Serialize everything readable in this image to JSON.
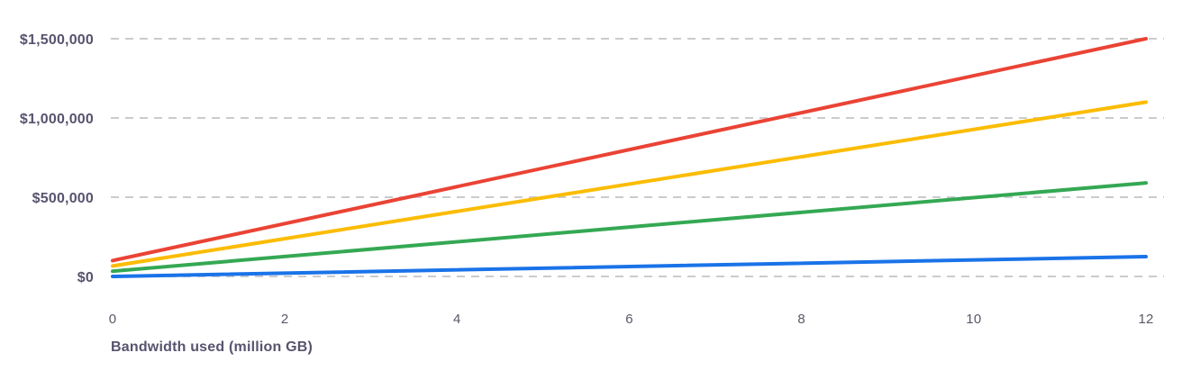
{
  "chart_data": {
    "type": "line",
    "title": "",
    "xlabel": "Bandwidth used (million GB)",
    "ylabel": "",
    "xlim": [
      0,
      12
    ],
    "ylim": [
      0,
      1500000
    ],
    "x_ticks": [
      {
        "value": 0,
        "label": "0"
      },
      {
        "value": 2,
        "label": "2"
      },
      {
        "value": 4,
        "label": "4"
      },
      {
        "value": 6,
        "label": "6"
      },
      {
        "value": 8,
        "label": "8"
      },
      {
        "value": 10,
        "label": "10"
      },
      {
        "value": 12,
        "label": "12"
      }
    ],
    "y_ticks": [
      {
        "value": 0,
        "label": "$0"
      },
      {
        "value": 500000,
        "label": "$500,000"
      },
      {
        "value": 1000000,
        "label": "$1,000,000"
      },
      {
        "value": 1500000,
        "label": "$1,500,000"
      }
    ],
    "grid": {
      "horizontal": true,
      "vertical": false,
      "style": "dashed"
    },
    "legend": "none",
    "series": [
      {
        "name": "red-line",
        "color": "#EA4335",
        "x": [
          0,
          12
        ],
        "y": [
          100000,
          1500000
        ]
      },
      {
        "name": "yellow-line",
        "color": "#FBBC04",
        "x": [
          0,
          12
        ],
        "y": [
          66000,
          1100000
        ]
      },
      {
        "name": "green-line",
        "color": "#34A853",
        "x": [
          0,
          12
        ],
        "y": [
          33000,
          590000
        ]
      },
      {
        "name": "blue-line",
        "color": "#1A73E8",
        "x": [
          0,
          12
        ],
        "y": [
          0,
          125000
        ]
      }
    ]
  },
  "colors": {
    "axis_text": "#57536E",
    "tick_text": "#5B5768",
    "gridline": "#CBCBCD",
    "background": "#FFFFFF"
  }
}
